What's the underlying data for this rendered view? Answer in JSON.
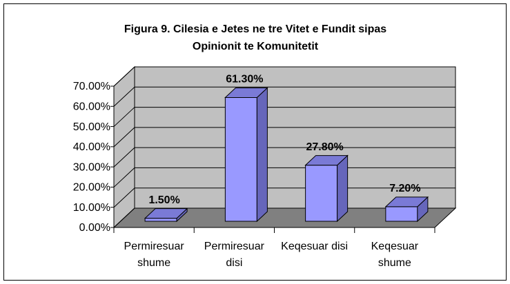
{
  "chart_data": {
    "type": "bar3d",
    "title": "Figura 9. Cilesia e Jetes ne tre Vitet e Fundit sipas Opinionit te Komunitetit",
    "categories": [
      "Permiresuar shume",
      "Permiresuar disi",
      "Keqesuar disi",
      "Keqesuar shume"
    ],
    "values": [
      1.5,
      61.3,
      27.8,
      7.2
    ],
    "value_labels": [
      "1.50%",
      "61.30%",
      "27.80%",
      "7.20%"
    ],
    "color": "#9999ff",
    "ylim": [
      0,
      70
    ],
    "yticks": [
      {
        "value": 0,
        "label": "0.00%"
      },
      {
        "value": 10,
        "label": "10.00%"
      },
      {
        "value": 20,
        "label": "20.00%"
      },
      {
        "value": 30,
        "label": "30.00%"
      },
      {
        "value": 40,
        "label": "40.00%"
      },
      {
        "value": 50,
        "label": "50.00%"
      },
      {
        "value": 60,
        "label": "60.00%"
      },
      {
        "value": 70,
        "label": "70.00%"
      }
    ],
    "grid": true
  }
}
